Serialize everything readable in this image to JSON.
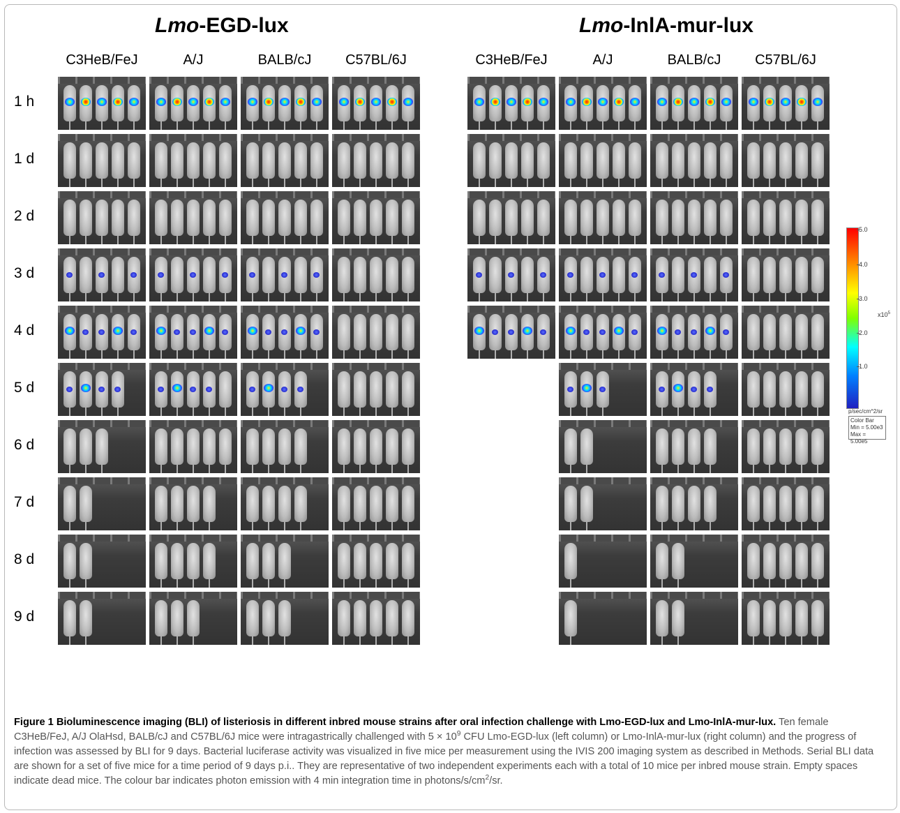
{
  "groups": [
    {
      "title_italic": "Lmo",
      "title_rest": "-EGD-lux",
      "strains": [
        "C3HeB/FeJ",
        "A/J",
        "BALB/cJ",
        "C57BL/6J"
      ]
    },
    {
      "title_italic": "Lmo",
      "title_rest": "-InlA-mur-lux",
      "strains": [
        "C3HeB/FeJ",
        "A/J",
        "BALB/cJ",
        "C57BL/6J"
      ]
    }
  ],
  "rows": [
    "1 h",
    "1 d",
    "2 d",
    "3 d",
    "4 d",
    "5 d",
    "6 d",
    "7 d",
    "8 d",
    "9 d"
  ],
  "alive_mice": [
    [
      [
        5,
        5,
        5,
        5
      ],
      [
        5,
        5,
        5,
        5
      ]
    ],
    [
      [
        5,
        5,
        5,
        5
      ],
      [
        5,
        5,
        5,
        5
      ]
    ],
    [
      [
        5,
        5,
        5,
        5
      ],
      [
        5,
        5,
        5,
        5
      ]
    ],
    [
      [
        5,
        5,
        5,
        5
      ],
      [
        5,
        5,
        5,
        5
      ]
    ],
    [
      [
        5,
        5,
        5,
        5
      ],
      [
        5,
        5,
        5,
        5
      ]
    ],
    [
      [
        4,
        5,
        4,
        5
      ],
      [
        0,
        3,
        4,
        5
      ]
    ],
    [
      [
        3,
        5,
        4,
        5
      ],
      [
        0,
        2,
        4,
        5
      ]
    ],
    [
      [
        2,
        4,
        4,
        5
      ],
      [
        0,
        2,
        4,
        5
      ]
    ],
    [
      [
        2,
        4,
        3,
        5
      ],
      [
        0,
        1,
        2,
        5
      ]
    ],
    [
      [
        2,
        3,
        3,
        5
      ],
      [
        0,
        1,
        2,
        5
      ]
    ]
  ],
  "colorbar": {
    "ticks": [
      "5.0",
      "4.0",
      "3.0",
      "2.0",
      "1.0"
    ],
    "exponent": "x10",
    "exponent_power": "5",
    "units": "p/sec/cm^2/sr",
    "box_title": "Color Bar",
    "box_min": "Min = 5.00e3",
    "box_max": "Max = 5.00e5"
  },
  "caption": {
    "bold": "Figure 1 Bioluminescence imaging (BLI) of listeriosis in different inbred mouse strains after oral infection challenge with Lmo-EGD-lux and Lmo-InlA-mur-lux.",
    "part1": "Ten female C3HeB/FeJ, A/J OlaHsd, BALB/cJ and C57BL/6J mice were intragastrically challenged with 5 × 10",
    "sup1": "9",
    "part2": "CFU Lmo-EGD-lux (left column) or Lmo-InlA-mur-lux (right column) and the progress of infection was assessed by BLI for 9 days. Bacterial luciferase activity was visualized in five mice per measurement using the IVIS 200 imaging system as described in Methods. Serial BLI data are shown for a set of five mice for a time period of 9 days p.i.. They are representative of two independent experiments each with a total of 10 mice per inbred mouse strain. Empty spaces indicate dead mice. The colour bar indicates photon emission with 4 min integration time in photons/s/cm",
    "sup2": "2",
    "part3": "/sr."
  }
}
